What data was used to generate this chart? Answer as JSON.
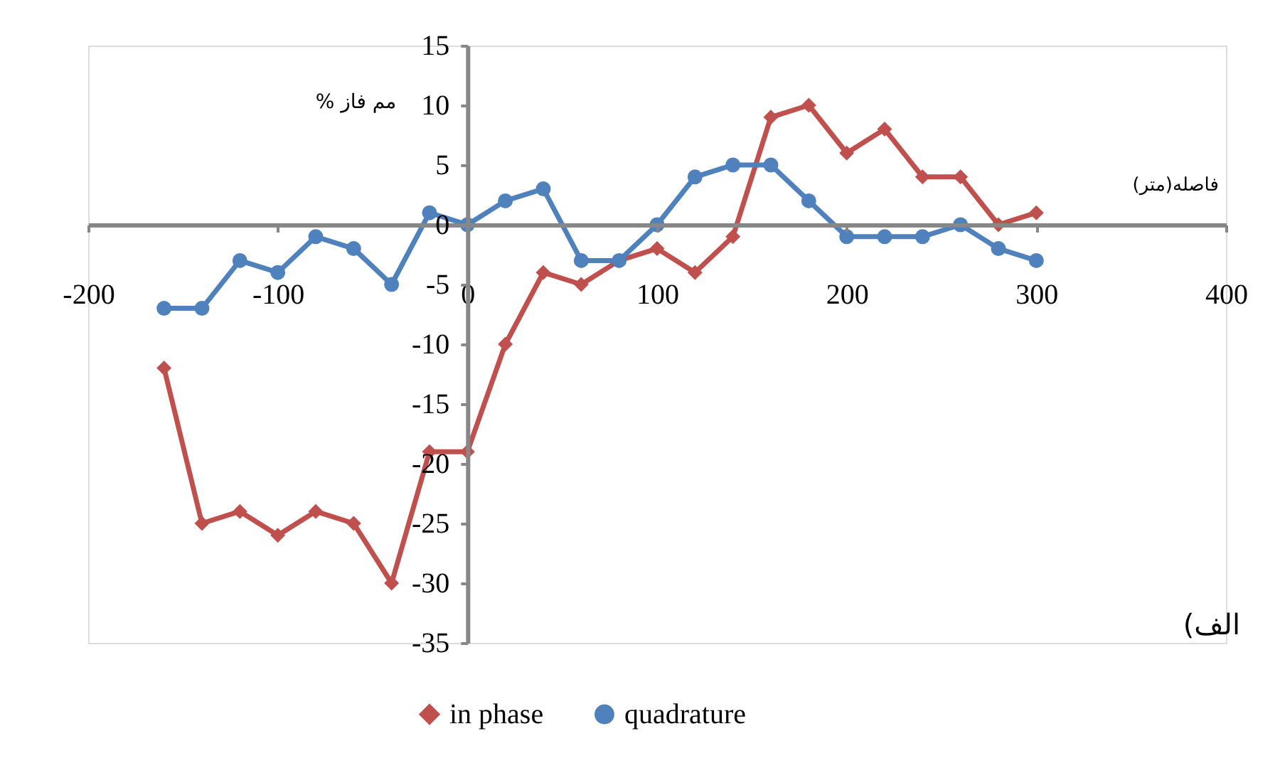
{
  "chart_data": {
    "type": "line",
    "xlabel": "فاصله(متر)",
    "ylabel": "% مم فاز",
    "annotations": [
      "(الف"
    ],
    "x": [
      -160,
      -140,
      -120,
      -100,
      -80,
      -60,
      -40,
      -20,
      0,
      20,
      40,
      60,
      80,
      100,
      120,
      140,
      160,
      180,
      200,
      220,
      240,
      260,
      280,
      300
    ],
    "series": [
      {
        "name": "in phase",
        "color": "#c0504d",
        "marker": "diamond",
        "values": [
          -12,
          -25,
          -24,
          -26,
          -24,
          -25,
          -30,
          -19,
          -19,
          -10,
          -4,
          -5,
          -3,
          -2,
          -4,
          -1,
          9,
          10,
          6,
          8,
          4,
          4,
          0,
          1
        ]
      },
      {
        "name": "quadrature",
        "color": "#4f81bd",
        "marker": "circle",
        "values": [
          -7,
          -7,
          -3,
          -4,
          -1,
          -2,
          -5,
          1,
          0,
          2,
          3,
          -3,
          -3,
          0,
          4,
          5,
          5,
          2,
          -1,
          -1,
          -1,
          0,
          -2,
          -3
        ]
      }
    ],
    "xlim": [
      -200,
      400
    ],
    "xticks": [
      -200,
      -100,
      0,
      100,
      200,
      300,
      400
    ],
    "ylim": [
      -35,
      15
    ],
    "yticks": [
      -35,
      -30,
      -25,
      -20,
      -15,
      -10,
      -5,
      0,
      5,
      10,
      15
    ],
    "grid": false,
    "legend": "bottom",
    "line_style": "solid"
  }
}
